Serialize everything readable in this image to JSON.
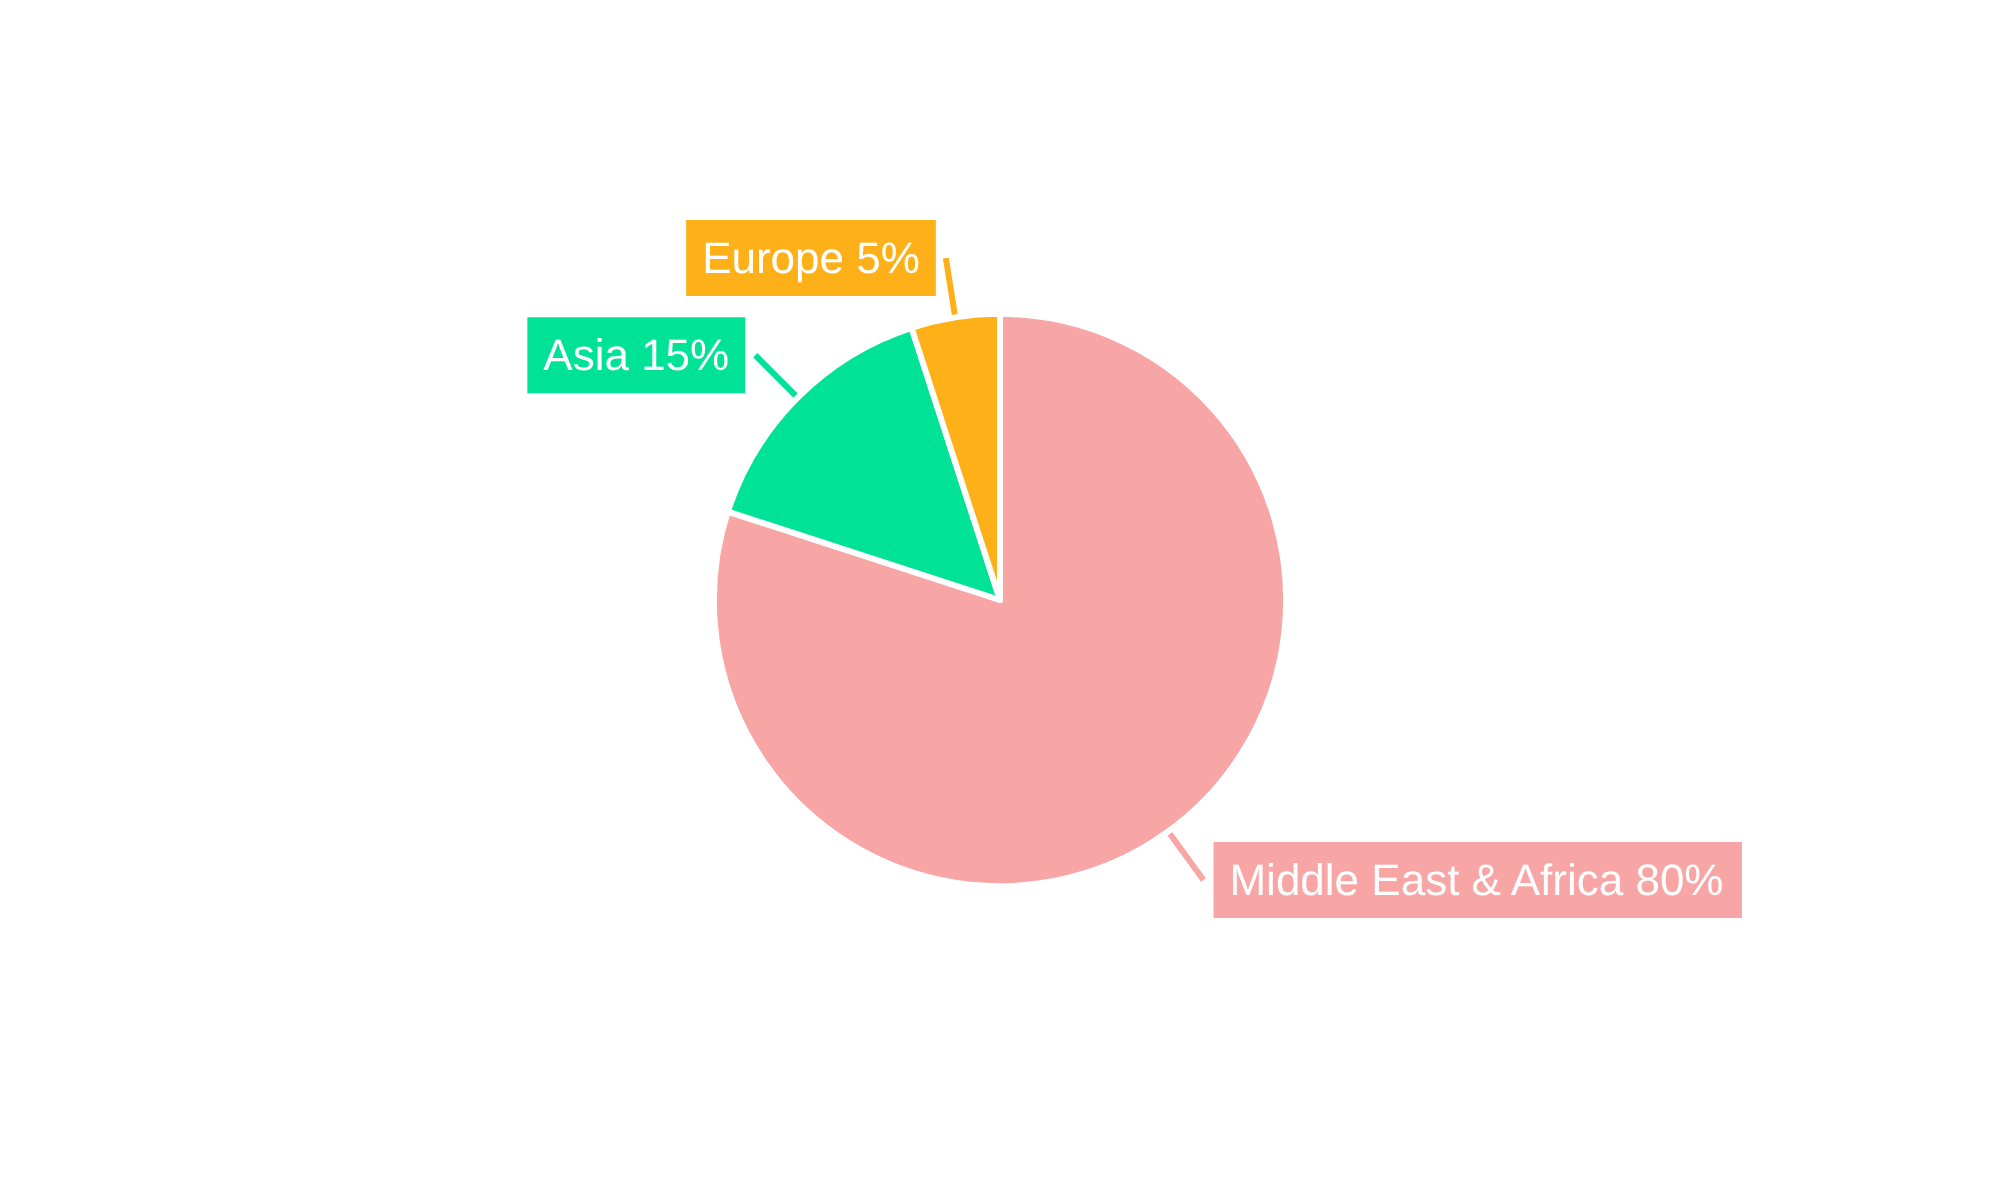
{
  "chart_data": {
    "type": "pie",
    "categories": [
      "Middle East & Africa",
      "Asia",
      "Europe"
    ],
    "values": [
      80,
      15,
      5
    ],
    "colors": [
      "#f8a5a5",
      "#00e396",
      "#feb019"
    ],
    "value_labels": [
      "80%",
      "15%",
      "5%"
    ],
    "legend": false
  }
}
